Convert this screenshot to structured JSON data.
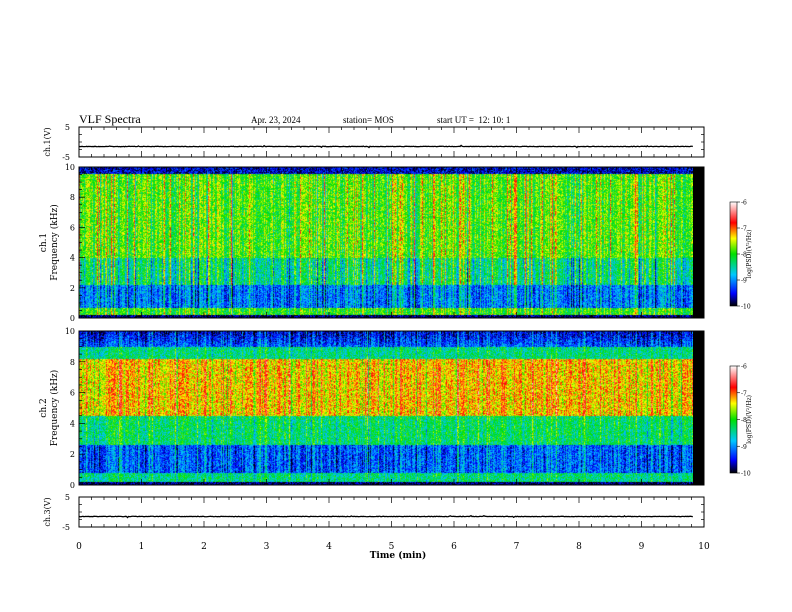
{
  "header": {
    "title": "VLF Spectra",
    "date": "Apr. 23, 2024",
    "station": "station= MOS",
    "start": "start UT =  12: 10: 1"
  },
  "chart_data": [
    {
      "type": "line",
      "panel": "top-voltage",
      "ylabel": "ch.1(V)",
      "yticks": [
        "5",
        "-5"
      ],
      "ylim": [
        -5,
        5
      ],
      "x": [
        0,
        9.82
      ],
      "values": [
        -1.5,
        -1.5
      ]
    },
    {
      "type": "heatmap",
      "panel": "spectrogram-ch1",
      "ylabel_line1": "ch.1",
      "ylabel_line2": "Frequency (kHz)",
      "yticks": [
        "0",
        "2",
        "4",
        "6",
        "8",
        "10"
      ],
      "ylim": [
        0,
        10
      ],
      "xlim": [
        0,
        9.82
      ],
      "colorbar": {
        "label": "log(PSD)(V²/Hz)",
        "ticks": [
          "-6",
          "-7",
          "-8",
          "-9",
          "-10"
        ],
        "range": [
          -10,
          -6
        ]
      }
    },
    {
      "type": "heatmap",
      "panel": "spectrogram-ch2",
      "ylabel_line1": "ch.2",
      "ylabel_line2": "Frequency (kHz)",
      "yticks": [
        "0",
        "2",
        "4",
        "6",
        "8",
        "10"
      ],
      "ylim": [
        0,
        10
      ],
      "xlim": [
        0,
        9.82
      ],
      "colorbar": {
        "label": "log(PSD)(V²/Hz)",
        "ticks": [
          "-6",
          "-7",
          "-8",
          "-9",
          "-10"
        ],
        "range": [
          -10,
          -6
        ]
      }
    },
    {
      "type": "line",
      "panel": "bottom-voltage",
      "ylabel": "ch.3(V)",
      "yticks": [
        "5",
        "-5"
      ],
      "ylim": [
        -5,
        5
      ],
      "x": [
        0,
        9.82
      ],
      "values": [
        -1.5,
        -1.5
      ]
    }
  ],
  "xaxis": {
    "label": "Time (min)",
    "ticks": [
      "0",
      "1",
      "2",
      "3",
      "4",
      "5",
      "6",
      "7",
      "8",
      "9",
      "10"
    ],
    "xlim": [
      0,
      10
    ]
  }
}
